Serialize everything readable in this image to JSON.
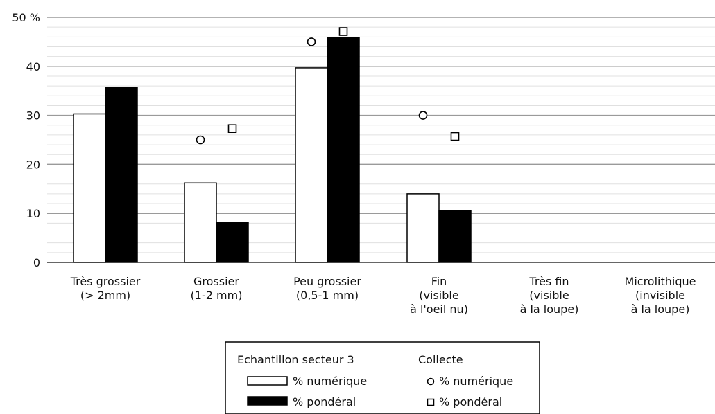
{
  "chart_data": {
    "type": "bar",
    "categories": [
      [
        "Très grossier",
        "(> 2mm)"
      ],
      [
        "Grossier",
        "(1-2 mm)"
      ],
      [
        "Peu grossier",
        "(0,5-1 mm)"
      ],
      [
        "Fin",
        "(visible",
        "à l'oeil nu)"
      ],
      [
        "Très fin",
        "(visible",
        "à la loupe)"
      ],
      [
        "Microlithique",
        "(invisible",
        "à la loupe)"
      ]
    ],
    "ylim": [
      0,
      50
    ],
    "yticks": [
      {
        "value": 0,
        "label": "0"
      },
      {
        "value": 10,
        "label": "10"
      },
      {
        "value": 20,
        "label": "20"
      },
      {
        "value": 30,
        "label": "30"
      },
      {
        "value": 40,
        "label": "40"
      },
      {
        "value": 50,
        "label": "50 %"
      }
    ],
    "grid": true,
    "minor_grid_step": 2,
    "series": [
      {
        "name": "% numérique",
        "group": "Echantillon secteur 3",
        "kind": "bar",
        "fill": "#ffffff",
        "values": [
          30.3,
          16.2,
          39.7,
          14.0,
          null,
          null
        ]
      },
      {
        "name": "% pondéral",
        "group": "Echantillon secteur 3",
        "kind": "bar",
        "fill": "#000000",
        "values": [
          35.7,
          8.2,
          45.9,
          10.6,
          null,
          null
        ]
      },
      {
        "name": "% numérique",
        "group": "Collecte",
        "kind": "circle",
        "values": [
          null,
          25.0,
          45.0,
          30.0,
          null,
          null
        ]
      },
      {
        "name": "% pondéral",
        "group": "Collecte",
        "kind": "square",
        "values": [
          null,
          27.3,
          47.1,
          25.7,
          null,
          null
        ]
      }
    ],
    "legend": {
      "position": "bottom-center",
      "group_titles": [
        "Echantillon secteur 3",
        "Collecte"
      ]
    }
  }
}
